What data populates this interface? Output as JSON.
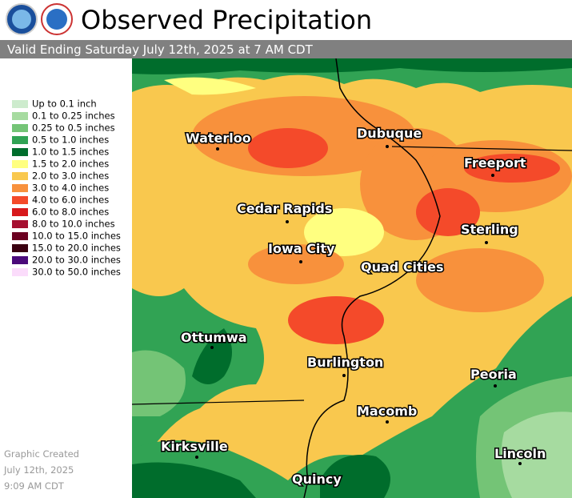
{
  "header": {
    "title": "Observed Precipitation",
    "subtitle": "Valid Ending Saturday July 12th, 2025 at 7 AM CDT"
  },
  "legend": [
    {
      "label": "Up to 0.1 inch",
      "color": "#cdebcd"
    },
    {
      "label": "0.1 to 0.25 inches",
      "color": "#a6dba0"
    },
    {
      "label": "0.25 to 0.5 inches",
      "color": "#74c476"
    },
    {
      "label": "0.5 to 1.0 inches",
      "color": "#31a354"
    },
    {
      "label": "1.0 to 1.5 inches",
      "color": "#006d2c"
    },
    {
      "label": "1.5 to 2.0 inches",
      "color": "#ffff80"
    },
    {
      "label": "2.0 to 3.0 inches",
      "color": "#f9c84e"
    },
    {
      "label": "3.0 to 4.0 inches",
      "color": "#f8913c"
    },
    {
      "label": "4.0 to 6.0 inches",
      "color": "#f44a2a"
    },
    {
      "label": "6.0 to 8.0 inches",
      "color": "#d7191c"
    },
    {
      "label": "8.0 to 10.0 inches",
      "color": "#a50f30"
    },
    {
      "label": "10.0 to 15.0 inches",
      "color": "#6b0020"
    },
    {
      "label": "15.0 to 20.0 inches",
      "color": "#3a0010"
    },
    {
      "label": "20.0 to 30.0 inches",
      "color": "#4b0a7a"
    },
    {
      "label": "30.0 to 50.0 inches",
      "color": "#fbdcfb"
    }
  ],
  "cities": [
    "Waterloo",
    "Dubuque",
    "Freeport",
    "Cedar Rapids",
    "Sterling",
    "Iowa City",
    "Quad Cities",
    "Ottumwa",
    "Burlington",
    "Peoria",
    "Macomb",
    "Kirksville",
    "Lincoln",
    "Quincy"
  ],
  "footer": [
    "Graphic Created",
    "July 12th, 2025",
    "9:09 AM CDT"
  ]
}
